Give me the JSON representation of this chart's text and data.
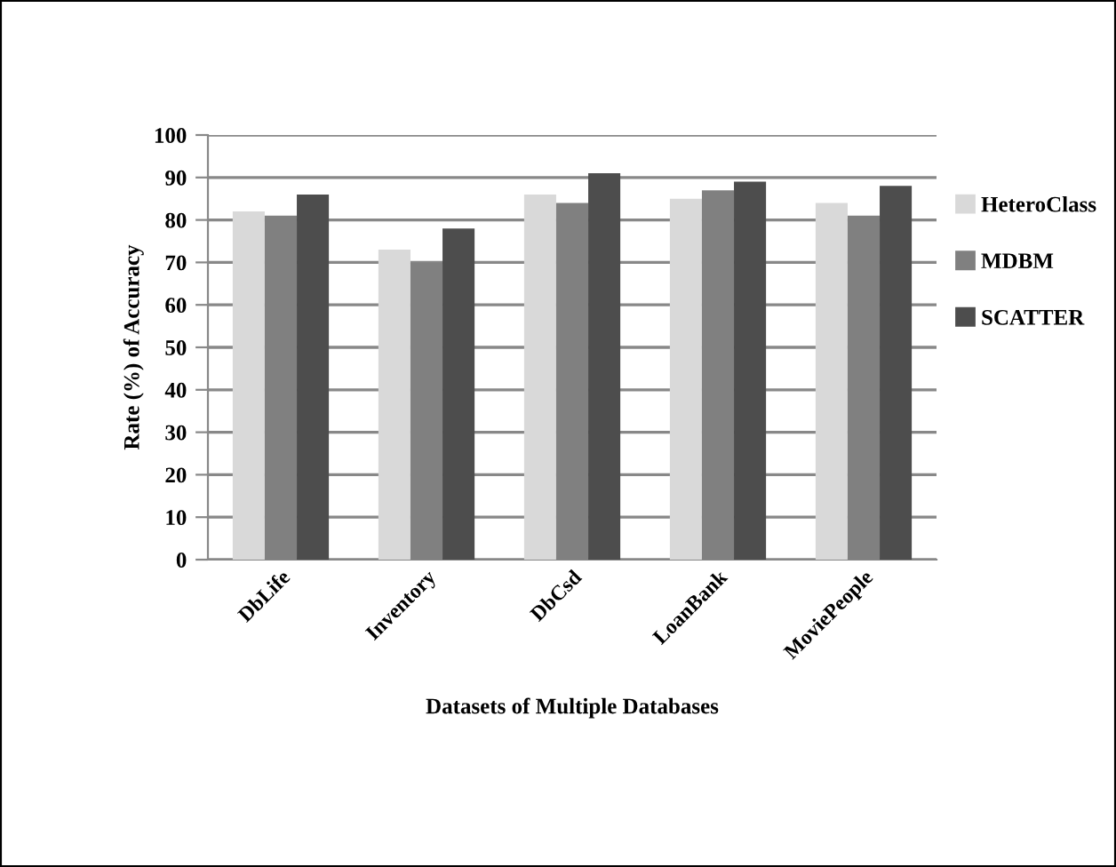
{
  "chart_data": {
    "type": "bar",
    "xlabel": "Datasets of Multiple Databases",
    "ylabel": "Rate (%) of Accuracy",
    "categories": [
      "DbLife",
      "Inventory",
      "DbCsd",
      "LoanBank",
      "MoviePeople"
    ],
    "series": [
      {
        "name": "HeteroClass",
        "color": "#d9d9d9",
        "values": [
          82,
          73,
          86,
          85,
          84
        ]
      },
      {
        "name": "MDBM",
        "color": "#808080",
        "values": [
          81,
          70,
          84,
          87,
          81
        ]
      },
      {
        "name": "SCATTER",
        "color": "#4d4d4d",
        "values": [
          86,
          78,
          91,
          89,
          88
        ]
      }
    ],
    "ylim": [
      0,
      100
    ],
    "yticks": [
      0,
      10,
      20,
      30,
      40,
      50,
      60,
      70,
      80,
      90,
      100
    ],
    "grid": "y",
    "legend": "right"
  }
}
